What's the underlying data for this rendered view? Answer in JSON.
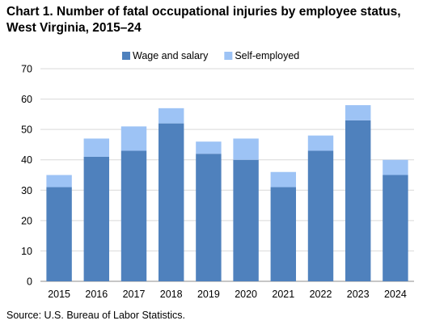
{
  "title": "Chart 1. Number of fatal occupational injuries by employee status, West Virginia, 2015–24",
  "source": "Source: U.S. Bureau  of Labor Statistics.",
  "chart_data": {
    "type": "bar",
    "stacked": true,
    "title": "Chart 1. Number of fatal occupational injuries by employee status, West Virginia, 2015–24",
    "xlabel": "",
    "ylabel": "",
    "ylim": [
      0,
      70
    ],
    "yticks": [
      0,
      10,
      20,
      30,
      40,
      50,
      60,
      70
    ],
    "grid": true,
    "legend": "top-center",
    "categories": [
      "2015",
      "2016",
      "2017",
      "2018",
      "2019",
      "2020",
      "2021",
      "2022",
      "2023",
      "2024"
    ],
    "series": [
      {
        "name": "Wage and salary",
        "color": "#4f81bd",
        "values": [
          31,
          41,
          43,
          52,
          42,
          40,
          31,
          43,
          53,
          35
        ]
      },
      {
        "name": "Self-employed",
        "color": "#9dc3f5",
        "values": [
          4,
          6,
          8,
          5,
          4,
          7,
          5,
          5,
          5,
          5
        ]
      }
    ]
  }
}
